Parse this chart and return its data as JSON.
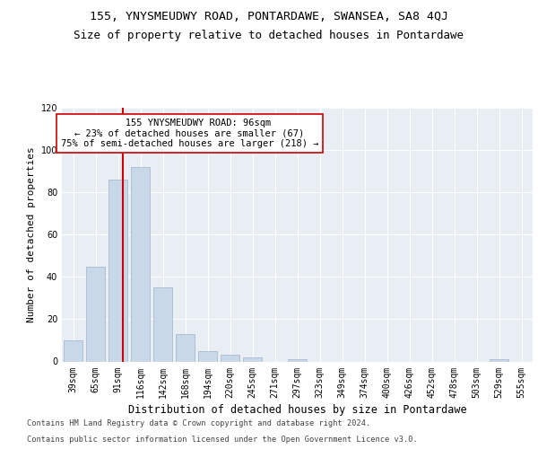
{
  "title_line1": "155, YNYSMEUDWY ROAD, PONTARDAWE, SWANSEA, SA8 4QJ",
  "title_line2": "Size of property relative to detached houses in Pontardawe",
  "xlabel": "Distribution of detached houses by size in Pontardawe",
  "ylabel": "Number of detached properties",
  "bar_labels": [
    "39sqm",
    "65sqm",
    "91sqm",
    "116sqm",
    "142sqm",
    "168sqm",
    "194sqm",
    "220sqm",
    "245sqm",
    "271sqm",
    "297sqm",
    "323sqm",
    "349sqm",
    "374sqm",
    "400sqm",
    "426sqm",
    "452sqm",
    "478sqm",
    "503sqm",
    "529sqm",
    "555sqm"
  ],
  "bar_values": [
    10,
    45,
    86,
    92,
    35,
    13,
    5,
    3,
    2,
    0,
    1,
    0,
    0,
    0,
    0,
    0,
    0,
    0,
    0,
    1,
    0
  ],
  "bar_color": "#c8d8e8",
  "bar_edge_color": "#a0b4cc",
  "vline_color": "#cc0000",
  "annotation_line1": "   155 YNYSMEUDWY ROAD: 96sqm",
  "annotation_line2": "← 23% of detached houses are smaller (67)",
  "annotation_line3": "75% of semi-detached houses are larger (218) →",
  "annotation_box_facecolor": "#ffffff",
  "annotation_box_edgecolor": "#cc0000",
  "ylim": [
    0,
    120
  ],
  "yticks": [
    0,
    20,
    40,
    60,
    80,
    100,
    120
  ],
  "bg_color": "#e8eef4",
  "grid_color": "#ffffff",
  "footer_line1": "Contains HM Land Registry data © Crown copyright and database right 2024.",
  "footer_line2": "Contains public sector information licensed under the Open Government Licence v3.0.",
  "title1_fontsize": 9.5,
  "title2_fontsize": 9.0,
  "ylabel_fontsize": 8.0,
  "xlabel_fontsize": 8.5,
  "tick_fontsize": 7.0,
  "annotation_fontsize": 7.5,
  "footer_fontsize": 6.2
}
